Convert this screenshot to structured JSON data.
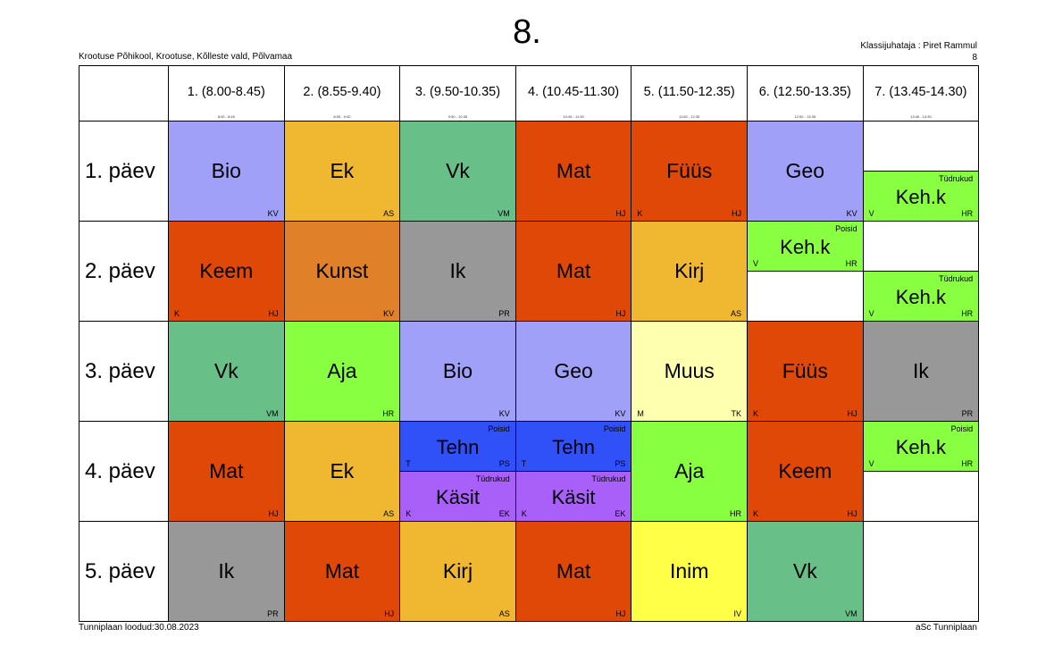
{
  "header": {
    "title": "8.",
    "school": "Krootuse Põhikool, Krootuse, Kõlleste vald, Põlvamaa",
    "teacher": "Klassijuhataja : Piret Rammul",
    "class_number": "8"
  },
  "footer": {
    "created": "Tunniplaan loodud:30.08.2023",
    "software": "aSc Tunniplaan"
  },
  "periods": [
    {
      "label": "1. (8.00-8.45)",
      "small": "8:00 - 8:45"
    },
    {
      "label": "2. (8.55-9.40)",
      "small": "8:55 - 9:40"
    },
    {
      "label": "3. (9.50-10.35)",
      "small": "9:50 - 10:35"
    },
    {
      "label": "4. (10.45-11.30)",
      "small": "10:45 - 11:30"
    },
    {
      "label": "5. (11.50-12.35)",
      "small": "11:50 - 12:35"
    },
    {
      "label": "6. (12.50-13.35)",
      "small": "12:50 - 13:35"
    },
    {
      "label": "7. (13.45-14.30)",
      "small": "13:45 - 14:30"
    }
  ],
  "days": [
    "1. päev",
    "2. päev",
    "3. päev",
    "4. päev",
    "5. päev"
  ],
  "lessons": [
    {
      "day": 0,
      "period": 0,
      "slot": "full",
      "subject": "Bio",
      "teacher": "KV",
      "room": "",
      "group": "",
      "color": "#a0a0f8"
    },
    {
      "day": 0,
      "period": 1,
      "slot": "full",
      "subject": "Ek",
      "teacher": "AS",
      "room": "",
      "group": "",
      "color": "#f0b830"
    },
    {
      "day": 0,
      "period": 2,
      "slot": "full",
      "subject": "Vk",
      "teacher": "VM",
      "room": "",
      "group": "",
      "color": "#68c088"
    },
    {
      "day": 0,
      "period": 3,
      "slot": "full",
      "subject": "Mat",
      "teacher": "HJ",
      "room": "",
      "group": "",
      "color": "#e04808"
    },
    {
      "day": 0,
      "period": 4,
      "slot": "full",
      "subject": "Füüs",
      "teacher": "HJ",
      "room": "K",
      "group": "",
      "color": "#e04808"
    },
    {
      "day": 0,
      "period": 5,
      "slot": "full",
      "subject": "Geo",
      "teacher": "KV",
      "room": "",
      "group": "",
      "color": "#a0a0f8"
    },
    {
      "day": 0,
      "period": 6,
      "slot": "bottom",
      "subject": "Keh.k",
      "teacher": "HR",
      "room": "V",
      "group": "Tüdrukud",
      "color": "#88ff40"
    },
    {
      "day": 1,
      "period": 0,
      "slot": "full",
      "subject": "Keem",
      "teacher": "HJ",
      "room": "K",
      "group": "",
      "color": "#e04808"
    },
    {
      "day": 1,
      "period": 1,
      "slot": "full",
      "subject": "Kunst",
      "teacher": "KV",
      "room": "",
      "group": "",
      "color": "#e08028"
    },
    {
      "day": 1,
      "period": 2,
      "slot": "full",
      "subject": "Ik",
      "teacher": "PR",
      "room": "",
      "group": "",
      "color": "#989898"
    },
    {
      "day": 1,
      "period": 3,
      "slot": "full",
      "subject": "Mat",
      "teacher": "HJ",
      "room": "",
      "group": "",
      "color": "#e04808"
    },
    {
      "day": 1,
      "period": 4,
      "slot": "full",
      "subject": "Kirj",
      "teacher": "AS",
      "room": "",
      "group": "",
      "color": "#f0b830"
    },
    {
      "day": 1,
      "period": 5,
      "slot": "top",
      "subject": "Keh.k",
      "teacher": "HR",
      "room": "V",
      "group": "Poisid",
      "color": "#88ff40"
    },
    {
      "day": 1,
      "period": 6,
      "slot": "bottom",
      "subject": "Keh.k",
      "teacher": "HR",
      "room": "V",
      "group": "Tüdrukud",
      "color": "#88ff40"
    },
    {
      "day": 2,
      "period": 0,
      "slot": "full",
      "subject": "Vk",
      "teacher": "VM",
      "room": "",
      "group": "",
      "color": "#68c088"
    },
    {
      "day": 2,
      "period": 1,
      "slot": "full",
      "subject": "Aja",
      "teacher": "HR",
      "room": "",
      "group": "",
      "color": "#88ff40"
    },
    {
      "day": 2,
      "period": 2,
      "slot": "full",
      "subject": "Bio",
      "teacher": "KV",
      "room": "",
      "group": "",
      "color": "#a0a0f8"
    },
    {
      "day": 2,
      "period": 3,
      "slot": "full",
      "subject": "Geo",
      "teacher": "KV",
      "room": "",
      "group": "",
      "color": "#a0a0f8"
    },
    {
      "day": 2,
      "period": 4,
      "slot": "full",
      "subject": "Muus",
      "teacher": "TK",
      "room": "M",
      "group": "",
      "color": "#ffffb0"
    },
    {
      "day": 2,
      "period": 5,
      "slot": "full",
      "subject": "Füüs",
      "teacher": "HJ",
      "room": "K",
      "group": "",
      "color": "#e04808"
    },
    {
      "day": 2,
      "period": 6,
      "slot": "full",
      "subject": "Ik",
      "teacher": "PR",
      "room": "",
      "group": "",
      "color": "#989898"
    },
    {
      "day": 3,
      "period": 0,
      "slot": "full",
      "subject": "Mat",
      "teacher": "HJ",
      "room": "",
      "group": "",
      "color": "#e04808"
    },
    {
      "day": 3,
      "period": 1,
      "slot": "full",
      "subject": "Ek",
      "teacher": "AS",
      "room": "",
      "group": "",
      "color": "#f0b830"
    },
    {
      "day": 3,
      "period": 2,
      "slot": "top",
      "subject": "Tehn",
      "teacher": "PS",
      "room": "T",
      "group": "Poisid",
      "color": "#3050f8"
    },
    {
      "day": 3,
      "period": 2,
      "slot": "bottom",
      "subject": "Käsit",
      "teacher": "EK",
      "room": "K",
      "group": "Tüdrukud",
      "color": "#a860f8"
    },
    {
      "day": 3,
      "period": 3,
      "slot": "top",
      "subject": "Tehn",
      "teacher": "PS",
      "room": "T",
      "group": "Poisid",
      "color": "#3050f8"
    },
    {
      "day": 3,
      "period": 3,
      "slot": "bottom",
      "subject": "Käsit",
      "teacher": "EK",
      "room": "K",
      "group": "Tüdrukud",
      "color": "#a860f8"
    },
    {
      "day": 3,
      "period": 4,
      "slot": "full",
      "subject": "Aja",
      "teacher": "HR",
      "room": "",
      "group": "",
      "color": "#88ff40"
    },
    {
      "day": 3,
      "period": 5,
      "slot": "full",
      "subject": "Keem",
      "teacher": "HJ",
      "room": "K",
      "group": "",
      "color": "#e04808"
    },
    {
      "day": 3,
      "period": 6,
      "slot": "top",
      "subject": "Keh.k",
      "teacher": "HR",
      "room": "V",
      "group": "Poisid",
      "color": "#88ff40"
    },
    {
      "day": 4,
      "period": 0,
      "slot": "full",
      "subject": "Ik",
      "teacher": "PR",
      "room": "",
      "group": "",
      "color": "#989898"
    },
    {
      "day": 4,
      "period": 1,
      "slot": "full",
      "subject": "Mat",
      "teacher": "HJ",
      "room": "",
      "group": "",
      "color": "#e04808"
    },
    {
      "day": 4,
      "period": 2,
      "slot": "full",
      "subject": "Kirj",
      "teacher": "AS",
      "room": "",
      "group": "",
      "color": "#f0b830"
    },
    {
      "day": 4,
      "period": 3,
      "slot": "full",
      "subject": "Mat",
      "teacher": "HJ",
      "room": "",
      "group": "",
      "color": "#e04808"
    },
    {
      "day": 4,
      "period": 4,
      "slot": "full",
      "subject": "Inim",
      "teacher": "IV",
      "room": "",
      "group": "",
      "color": "#ffff48"
    },
    {
      "day": 4,
      "period": 5,
      "slot": "full",
      "subject": "Vk",
      "teacher": "VM",
      "room": "",
      "group": "",
      "color": "#68c088"
    }
  ]
}
